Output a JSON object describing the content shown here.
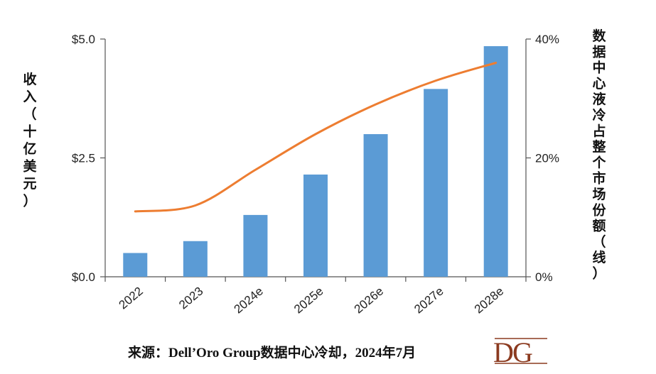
{
  "chart_data": {
    "type": "bar",
    "categories": [
      "2022",
      "2023",
      "2024e",
      "2025e",
      "2026e",
      "2027e",
      "2028e"
    ],
    "series": [
      {
        "axis": "left",
        "kind": "bar",
        "color": "#5b9bd5",
        "values": [
          0.5,
          0.75,
          1.3,
          2.15,
          3.0,
          3.95,
          4.85
        ]
      },
      {
        "axis": "right",
        "kind": "line",
        "color": "#ed7d31",
        "values": [
          11,
          12,
          18,
          24,
          29,
          33,
          36
        ]
      }
    ],
    "ylabel": "收入（十亿美元）",
    "y2label": "数据中心液冷占整个市场份额（线）",
    "ylim": [
      0,
      5
    ],
    "y2lim": [
      0,
      40
    ],
    "yticks": [
      "$0.0",
      "$2.5",
      "$5.0"
    ],
    "y2ticks": [
      "0%",
      "20%",
      "40%"
    ],
    "grid": false,
    "source": "来源：Dell’Oro Group数据中心冷却，2024年7月",
    "logo_text": "DG"
  }
}
